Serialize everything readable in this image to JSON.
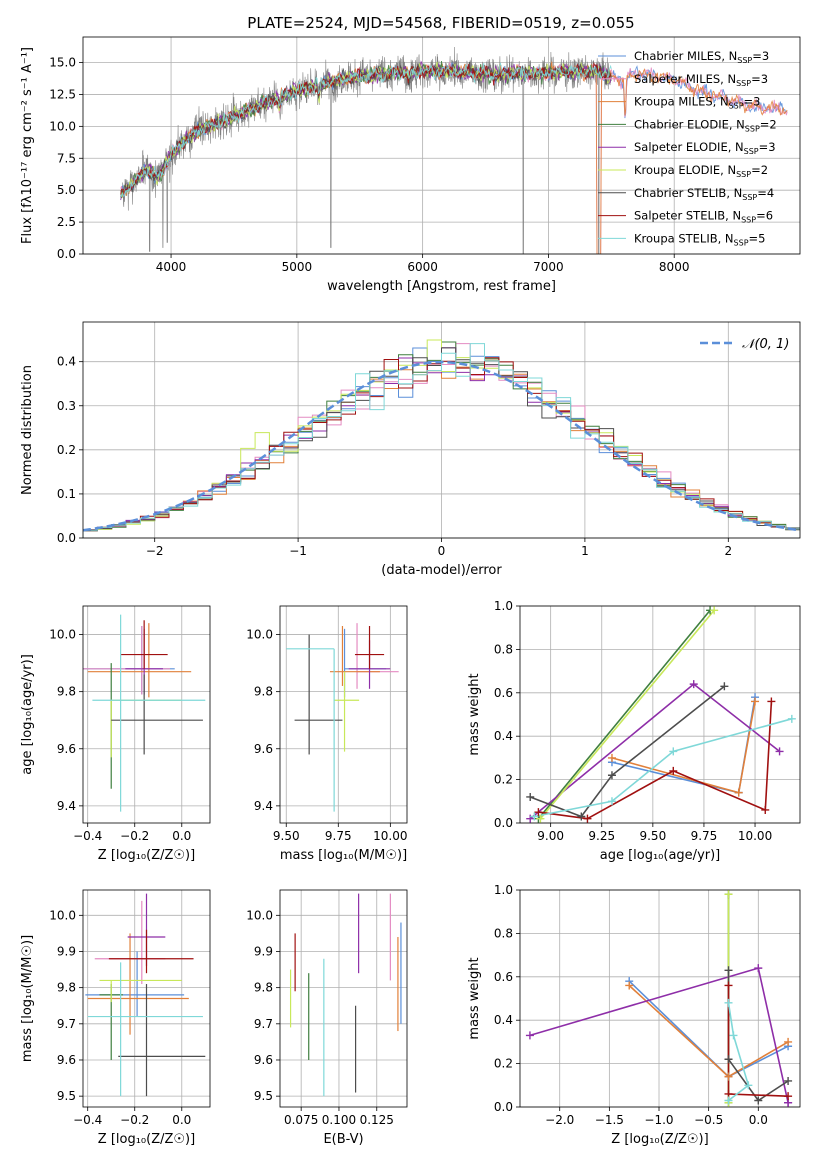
{
  "title": "PLATE=2524, MJD=54568, FIBERID=0519, z=0.055",
  "colors": {
    "chabrier_miles": "#5b8fd9",
    "salpeter_miles": "#e48bc2",
    "kroupa_miles": "#e1803a",
    "chabrier_elodie": "#3f7f3f",
    "salpeter_elodie": "#8e2ea8",
    "kroupa_elodie": "#c8e85a",
    "chabrier_stelib": "#4d4d4d",
    "salpeter_stelib": "#a01010",
    "kroupa_stelib": "#7fd8d8",
    "data": "#808080",
    "normal": "#5b8fd9"
  },
  "series": [
    {
      "key": "chabrier_miles",
      "label_pre": "Chabrier MILES, N",
      "sub": "SSP",
      "label_post": "=3"
    },
    {
      "key": "salpeter_miles",
      "label_pre": "Salpeter MILES, N",
      "sub": "SSP",
      "label_post": "=3"
    },
    {
      "key": "kroupa_miles",
      "label_pre": "Kroupa MILES, N",
      "sub": "SSP",
      "label_post": "=3"
    },
    {
      "key": "chabrier_elodie",
      "label_pre": "Chabrier ELODIE, N",
      "sub": "SSP",
      "label_post": "=2"
    },
    {
      "key": "salpeter_elodie",
      "label_pre": "Salpeter ELODIE, N",
      "sub": "SSP",
      "label_post": "=3"
    },
    {
      "key": "kroupa_elodie",
      "label_pre": "Kroupa ELODIE, N",
      "sub": "SSP",
      "label_post": "=2"
    },
    {
      "key": "chabrier_stelib",
      "label_pre": "Chabrier STELIB, N",
      "sub": "SSP",
      "label_post": "=4"
    },
    {
      "key": "salpeter_stelib",
      "label_pre": "Salpeter STELIB, N",
      "sub": "SSP",
      "label_post": "=6"
    },
    {
      "key": "kroupa_stelib",
      "label_pre": "Kroupa STELIB, N",
      "sub": "SSP",
      "label_post": "=5"
    }
  ],
  "chart_data": [
    {
      "id": "spectrum",
      "type": "line",
      "xlabel": "wavelength [Angstrom, rest frame]",
      "ylabel": "Flux [fλ10⁻¹⁷ erg cm⁻² s⁻¹ A⁻¹]",
      "xlim": [
        3300,
        9000
      ],
      "ylim": [
        0,
        17
      ],
      "xticks": [
        4000,
        5000,
        6000,
        7000,
        8000
      ],
      "yticks": [
        0.0,
        2.5,
        5.0,
        7.5,
        10.0,
        12.5,
        15.0
      ],
      "continuum": [
        [
          3600,
          4.6
        ],
        [
          3700,
          5.6
        ],
        [
          3800,
          6.6
        ],
        [
          3900,
          6.0
        ],
        [
          4000,
          7.8
        ],
        [
          4100,
          8.8
        ],
        [
          4200,
          9.6
        ],
        [
          4400,
          10.4
        ],
        [
          4600,
          11.2
        ],
        [
          4800,
          12.0
        ],
        [
          5000,
          12.8
        ],
        [
          5200,
          13.3
        ],
        [
          5400,
          13.8
        ],
        [
          5600,
          14.0
        ],
        [
          5800,
          14.2
        ],
        [
          6000,
          14.3
        ],
        [
          6200,
          14.3
        ],
        [
          6400,
          14.2
        ],
        [
          6600,
          14.1
        ],
        [
          6800,
          14.2
        ],
        [
          7000,
          14.2
        ],
        [
          7200,
          14.3
        ],
        [
          7400,
          14.3
        ],
        [
          7600,
          13.6
        ],
        [
          7700,
          14.2
        ],
        [
          7800,
          14.0
        ],
        [
          8000,
          13.6
        ],
        [
          8200,
          12.8
        ],
        [
          8400,
          12.2
        ],
        [
          8600,
          11.6
        ],
        [
          8800,
          11.4
        ],
        [
          8900,
          11.3
        ]
      ],
      "dips": [
        [
          3830,
          0.2
        ],
        [
          3935,
          0.5
        ],
        [
          3970,
          0.9
        ],
        [
          4101,
          8.6
        ],
        [
          4340,
          9.7
        ],
        [
          4862,
          11.0
        ],
        [
          5175,
          11.8
        ],
        [
          5270,
          0.5
        ],
        [
          5890,
          13.1
        ],
        [
          6563,
          13.6
        ],
        [
          6800,
          0.0
        ],
        [
          7400,
          0.0
        ],
        [
          7610,
          8.5
        ]
      ],
      "data_range": [
        3600,
        7500
      ],
      "noise": 1.6
    },
    {
      "id": "residuals",
      "type": "histogram",
      "xlabel": "(data-model)/error",
      "ylabel": "Normed distribution",
      "xlim": [
        -2.5,
        2.5
      ],
      "ylim": [
        0,
        0.49
      ],
      "xticks": [
        -2,
        -1,
        0,
        1,
        2
      ],
      "yticks": [
        0.0,
        0.1,
        0.2,
        0.3,
        0.4
      ],
      "bin_width": 0.1,
      "legend": "𝒩(0, 1)",
      "reference": {
        "type": "normal",
        "mean": 0,
        "sigma": 1
      }
    },
    {
      "id": "age_vs_Z",
      "type": "errorbar",
      "xlabel": "Z [log₁₀(Z/Z☉)]",
      "ylabel": "age  [log₁₀(age/yr)]",
      "xlim": [
        -0.42,
        0.12
      ],
      "ylim": [
        9.34,
        10.1
      ],
      "xticks": [
        -0.4,
        -0.2,
        0.0
      ],
      "yticks": [
        9.4,
        9.6,
        9.8,
        10.0
      ],
      "points": [
        {
          "key": "chabrier_miles",
          "x": -0.17,
          "y": 9.88,
          "xe": [
            0.26,
            0.14
          ],
          "ye": [
            0.09,
            0.15
          ]
        },
        {
          "key": "salpeter_miles",
          "x": -0.17,
          "y": 9.88,
          "xe": [
            0.26,
            0.12
          ],
          "ye": [
            0.09,
            0.15
          ]
        },
        {
          "key": "kroupa_miles",
          "x": -0.14,
          "y": 9.87,
          "xe": [
            0.26,
            0.18
          ],
          "ye": [
            0.09,
            0.17
          ]
        },
        {
          "key": "chabrier_elodie",
          "x": -0.3,
          "y": 9.77,
          "xe": [
            0.0,
            0.0
          ],
          "ye": [
            0.31,
            0.13
          ]
        },
        {
          "key": "salpeter_elodie",
          "x": -0.16,
          "y": 9.88,
          "xe": [
            0.08,
            0.08
          ],
          "ye": [
            0.09,
            0.14
          ]
        },
        {
          "key": "kroupa_elodie",
          "x": -0.3,
          "y": 9.77,
          "xe": [
            0.0,
            0.3
          ],
          "ye": [
            0.2,
            0.0
          ]
        },
        {
          "key": "chabrier_stelib",
          "x": -0.16,
          "y": 9.7,
          "xe": [
            0.14,
            0.25
          ],
          "ye": [
            0.12,
            0.16
          ]
        },
        {
          "key": "salpeter_stelib",
          "x": -0.16,
          "y": 9.93,
          "xe": [
            0.1,
            0.1
          ],
          "ye": [
            0.05,
            0.12
          ]
        },
        {
          "key": "kroupa_stelib",
          "x": -0.26,
          "y": 9.77,
          "xe": [
            0.12,
            0.36
          ],
          "ye": [
            0.39,
            0.3
          ]
        }
      ]
    },
    {
      "id": "age_vs_mass",
      "type": "errorbar",
      "xlabel": "mass [log₁₀(M/M☉)]",
      "ylabel": "",
      "xlim": [
        9.47,
        10.08
      ],
      "ylim": [
        9.34,
        10.1
      ],
      "xticks": [
        9.5,
        9.75,
        10.0
      ],
      "yticks": [
        9.4,
        9.6,
        9.8,
        10.0
      ],
      "points": [
        {
          "key": "chabrier_miles",
          "x": 9.78,
          "y": 9.88,
          "xe": [
            0.0,
            0.2
          ],
          "ye": [
            0.1,
            0.14
          ]
        },
        {
          "key": "salpeter_miles",
          "x": 9.84,
          "y": 9.87,
          "xe": [
            0.0,
            0.2
          ],
          "ye": [
            0.06,
            0.17
          ]
        },
        {
          "key": "kroupa_miles",
          "x": 9.77,
          "y": 9.87,
          "xe": [
            0.06,
            0.18
          ],
          "ye": [
            0.05,
            0.16
          ]
        },
        {
          "key": "chabrier_elodie",
          "x": 9.61,
          "y": 9.77,
          "xe": [
            0.0,
            0.0
          ],
          "ye": [
            0.0,
            0.0
          ]
        },
        {
          "key": "salpeter_elodie",
          "x": 9.9,
          "y": 9.88,
          "xe": [
            0.1,
            0.1
          ],
          "ye": [
            0.07,
            0.1
          ]
        },
        {
          "key": "kroupa_elodie",
          "x": 9.78,
          "y": 9.77,
          "xe": [
            0.05,
            0.07
          ],
          "ye": [
            0.18,
            0.1
          ]
        },
        {
          "key": "chabrier_stelib",
          "x": 9.61,
          "y": 9.7,
          "xe": [
            0.07,
            0.16
          ],
          "ye": [
            0.12,
            0.3
          ]
        },
        {
          "key": "salpeter_stelib",
          "x": 9.9,
          "y": 9.93,
          "xe": [
            0.07,
            0.07
          ],
          "ye": [
            0.05,
            0.1
          ]
        },
        {
          "key": "kroupa_stelib",
          "x": 9.73,
          "y": 9.95,
          "xe": [
            0.23,
            0.0
          ],
          "ye": [
            0.57,
            0.0
          ]
        }
      ]
    },
    {
      "id": "weight_vs_age",
      "type": "line",
      "xlabel": "age  [log₁₀(age/yr)]",
      "ylabel": "mass weight",
      "xlim": [
        8.85,
        10.22
      ],
      "ylim": [
        0,
        1.0
      ],
      "xticks": [
        9.0,
        9.25,
        9.5,
        9.75,
        10.0
      ],
      "yticks": [
        0.0,
        0.2,
        0.4,
        0.6,
        0.8,
        1.0
      ],
      "series": [
        {
          "key": "chabrier_miles",
          "x": [
            9.3,
            9.92,
            10.0
          ],
          "y": [
            0.28,
            0.14,
            0.58
          ]
        },
        {
          "key": "kroupa_miles",
          "x": [
            9.3,
            9.92,
            10.0
          ],
          "y": [
            0.3,
            0.14,
            0.56
          ]
        },
        {
          "key": "chabrier_elodie",
          "x": [
            8.94,
            9.78
          ],
          "y": [
            0.02,
            0.98
          ]
        },
        {
          "key": "salpeter_elodie",
          "x": [
            8.9,
            9.7,
            10.12
          ],
          "y": [
            0.02,
            0.64,
            0.33
          ]
        },
        {
          "key": "kroupa_elodie",
          "x": [
            8.95,
            9.8
          ],
          "y": [
            0.02,
            0.98
          ]
        },
        {
          "key": "chabrier_stelib",
          "x": [
            8.9,
            9.15,
            9.3,
            9.85
          ],
          "y": [
            0.12,
            0.03,
            0.22,
            0.63
          ]
        },
        {
          "key": "salpeter_stelib",
          "x": [
            8.94,
            9.18,
            9.6,
            10.05,
            10.08
          ],
          "y": [
            0.05,
            0.02,
            0.24,
            0.06,
            0.56
          ]
        },
        {
          "key": "kroupa_stelib",
          "x": [
            8.92,
            9.3,
            9.6,
            10.18
          ],
          "y": [
            0.03,
            0.1,
            0.33,
            0.48
          ]
        }
      ]
    },
    {
      "id": "mass_vs_Z",
      "type": "errorbar",
      "xlabel": "Z [log₁₀(Z/Z☉)]",
      "ylabel": "mass [log₁₀(M/M☉)]",
      "xlim": [
        -0.42,
        0.12
      ],
      "ylim": [
        9.47,
        10.07
      ],
      "xticks": [
        -0.4,
        -0.2,
        0.0
      ],
      "yticks": [
        9.5,
        9.6,
        9.7,
        9.8,
        9.9,
        10.0
      ],
      "points": [
        {
          "key": "chabrier_miles",
          "x": -0.19,
          "y": 9.78,
          "xe": [
            0.22,
            0.2
          ],
          "ye": [
            0.06,
            0.12
          ]
        },
        {
          "key": "salpeter_miles",
          "x": -0.17,
          "y": 9.88,
          "xe": [
            0.2,
            0.1
          ],
          "ye": [
            0.07,
            0.16
          ]
        },
        {
          "key": "kroupa_miles",
          "x": -0.22,
          "y": 9.77,
          "xe": [
            0.18,
            0.25
          ],
          "ye": [
            0.1,
            0.18
          ]
        },
        {
          "key": "chabrier_elodie",
          "x": -0.3,
          "y": 9.78,
          "xe": [
            0.05,
            0.05
          ],
          "ye": [
            0.18,
            0.03
          ]
        },
        {
          "key": "salpeter_elodie",
          "x": -0.15,
          "y": 9.94,
          "xe": [
            0.08,
            0.08
          ],
          "ye": [
            0.08,
            0.12
          ]
        },
        {
          "key": "kroupa_elodie",
          "x": -0.3,
          "y": 9.82,
          "xe": [
            0.05,
            0.3
          ],
          "ye": [
            0.06,
            0.0
          ]
        },
        {
          "key": "chabrier_stelib",
          "x": -0.15,
          "y": 9.61,
          "xe": [
            0.12,
            0.25
          ],
          "ye": [
            0.11,
            0.2
          ]
        },
        {
          "key": "salpeter_stelib",
          "x": -0.15,
          "y": 9.88,
          "xe": [
            0.16,
            0.2
          ],
          "ye": [
            0.04,
            0.08
          ]
        },
        {
          "key": "kroupa_stelib",
          "x": -0.26,
          "y": 9.72,
          "xe": [
            0.14,
            0.35
          ],
          "ye": [
            0.22,
            0.15
          ]
        }
      ]
    },
    {
      "id": "mass_vs_ebv",
      "type": "errorbar",
      "xlabel": "E(B-V)",
      "ylabel": "",
      "xlim": [
        0.061,
        0.145
      ],
      "ylim": [
        9.47,
        10.07
      ],
      "xticks": [
        0.075,
        0.1,
        0.125
      ],
      "yticks": [
        9.5,
        9.6,
        9.7,
        9.8,
        9.9,
        10.0
      ],
      "points": [
        {
          "key": "chabrier_miles",
          "x": 0.141,
          "y": 9.84,
          "xe": [
            0,
            0
          ],
          "ye": [
            0.14,
            0.14
          ]
        },
        {
          "key": "salpeter_miles",
          "x": 0.134,
          "y": 9.94,
          "xe": [
            0,
            0
          ],
          "ye": [
            0.12,
            0.12
          ]
        },
        {
          "key": "kroupa_miles",
          "x": 0.139,
          "y": 9.81,
          "xe": [
            0,
            0
          ],
          "ye": [
            0.13,
            0.13
          ]
        },
        {
          "key": "chabrier_elodie",
          "x": 0.08,
          "y": 9.72,
          "xe": [
            0,
            0
          ],
          "ye": [
            0.12,
            0.12
          ]
        },
        {
          "key": "salpeter_elodie",
          "x": 0.113,
          "y": 9.95,
          "xe": [
            0,
            0
          ],
          "ye": [
            0.11,
            0.11
          ]
        },
        {
          "key": "kroupa_elodie",
          "x": 0.068,
          "y": 9.77,
          "xe": [
            0,
            0
          ],
          "ye": [
            0.08,
            0.08
          ]
        },
        {
          "key": "chabrier_stelib",
          "x": 0.111,
          "y": 9.63,
          "xe": [
            0,
            0
          ],
          "ye": [
            0.12,
            0.12
          ]
        },
        {
          "key": "salpeter_stelib",
          "x": 0.071,
          "y": 9.87,
          "xe": [
            0,
            0
          ],
          "ye": [
            0.08,
            0.08
          ]
        },
        {
          "key": "kroupa_stelib",
          "x": 0.09,
          "y": 9.69,
          "xe": [
            0,
            0
          ],
          "ye": [
            0.19,
            0.19
          ]
        }
      ]
    },
    {
      "id": "weight_vs_Z",
      "type": "line",
      "xlabel": "Z [log₁₀(Z/Z☉)]",
      "ylabel": "mass weight",
      "xlim": [
        -2.4,
        0.42
      ],
      "ylim": [
        0,
        1.0
      ],
      "xticks": [
        -2.0,
        -1.5,
        -1.0,
        -0.5,
        0.0
      ],
      "yticks": [
        0.0,
        0.2,
        0.4,
        0.6,
        0.8,
        1.0
      ],
      "series": [
        {
          "key": "chabrier_miles",
          "x": [
            -1.3,
            -0.3,
            0.3
          ],
          "y": [
            0.58,
            0.14,
            0.28
          ]
        },
        {
          "key": "kroupa_miles",
          "x": [
            -1.3,
            -0.3,
            0.3
          ],
          "y": [
            0.56,
            0.14,
            0.3
          ]
        },
        {
          "key": "chabrier_elodie",
          "x": [
            -0.3,
            -0.3
          ],
          "y": [
            0.98,
            0.02
          ]
        },
        {
          "key": "salpeter_elodie",
          "x": [
            -2.3,
            0.0,
            0.3,
            0.3
          ],
          "y": [
            0.33,
            0.64,
            0.02,
            0.02
          ]
        },
        {
          "key": "kroupa_elodie",
          "x": [
            -0.3,
            -0.3
          ],
          "y": [
            0.98,
            0.02
          ]
        },
        {
          "key": "chabrier_stelib",
          "x": [
            -0.3,
            -0.3,
            0.0,
            0.3
          ],
          "y": [
            0.63,
            0.22,
            0.03,
            0.12
          ]
        },
        {
          "key": "salpeter_stelib",
          "x": [
            -0.3,
            -0.3,
            0.3
          ],
          "y": [
            0.56,
            0.06,
            0.05
          ]
        },
        {
          "key": "kroupa_stelib",
          "x": [
            -0.3,
            -0.25,
            -0.1,
            -0.3
          ],
          "y": [
            0.48,
            0.33,
            0.1,
            0.03
          ]
        }
      ]
    }
  ]
}
